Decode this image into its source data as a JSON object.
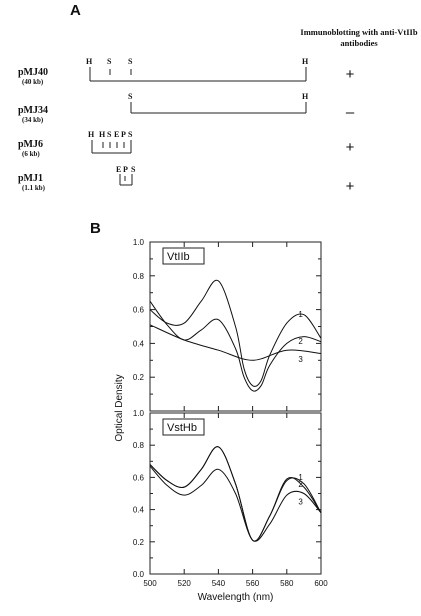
{
  "panel_a": {
    "label": "A",
    "header": [
      "Immunoblotting with anti-VtIIb",
      "antibodies"
    ],
    "clones": [
      {
        "name": "pMJ40",
        "size": "(40 kb)",
        "result": "+",
        "sites": [
          "H",
          "S",
          "S",
          "H"
        ]
      },
      {
        "name": "pMJ34",
        "size": "(34 kb)",
        "result": "–",
        "sites": [
          "S",
          "H"
        ]
      },
      {
        "name": "pMJ6",
        "size": "(6 kb)",
        "result": "+",
        "sites": [
          "H",
          "H",
          "S",
          "E",
          "P",
          "S"
        ]
      },
      {
        "name": "pMJ1",
        "size": "(1.1 kb)",
        "result": "+",
        "sites": [
          "E",
          "P",
          "S"
        ]
      }
    ]
  },
  "panel_b": {
    "label": "B",
    "chart_data": {
      "type": "line",
      "xlabel": "Wavelength  (nm)",
      "ylabel": "Optical Density",
      "xlim": [
        500,
        600
      ],
      "ylim": [
        0.0,
        1.0
      ],
      "x_ticks": [
        "500",
        "520",
        "540",
        "560",
        "580",
        "600"
      ],
      "y_ticks": [
        "0.0",
        "0.2",
        "0.4",
        "0.6",
        "0.8",
        "1.0"
      ],
      "y_ticks_upper": [
        "0.2",
        "0.4",
        "0.6",
        "0.8",
        "1.0"
      ],
      "subplots": [
        {
          "title": "VtIIb",
          "series": [
            {
              "name": "1",
              "x": [
                500,
                510,
                520,
                530,
                540,
                550,
                555,
                560,
                565,
                570,
                580,
                590,
                600
              ],
              "y": [
                0.6,
                0.52,
                0.52,
                0.65,
                0.77,
                0.5,
                0.25,
                0.15,
                0.18,
                0.33,
                0.52,
                0.57,
                0.43
              ]
            },
            {
              "name": "2",
              "x": [
                500,
                510,
                520,
                530,
                540,
                550,
                555,
                560,
                565,
                570,
                580,
                590,
                600
              ],
              "y": [
                0.65,
                0.51,
                0.42,
                0.48,
                0.54,
                0.37,
                0.2,
                0.12,
                0.15,
                0.27,
                0.4,
                0.44,
                0.41
              ]
            },
            {
              "name": "3",
              "x": [
                500,
                520,
                540,
                560,
                580,
                600
              ],
              "y": [
                0.51,
                0.42,
                0.36,
                0.3,
                0.36,
                0.34
              ]
            }
          ]
        },
        {
          "title": "VstHb",
          "series": [
            {
              "name": "1",
              "x": [
                500,
                510,
                520,
                530,
                540,
                550,
                560,
                570,
                580,
                590,
                600
              ],
              "y": [
                0.68,
                0.58,
                0.54,
                0.65,
                0.79,
                0.56,
                0.21,
                0.36,
                0.58,
                0.56,
                0.38
              ]
            },
            {
              "name": "2",
              "x": [
                500,
                510,
                520,
                530,
                540,
                550,
                560,
                570,
                580,
                590,
                600
              ],
              "y": [
                0.68,
                0.58,
                0.54,
                0.65,
                0.79,
                0.56,
                0.21,
                0.36,
                0.59,
                0.54,
                0.38
              ]
            },
            {
              "name": "3",
              "x": [
                500,
                510,
                520,
                530,
                540,
                550,
                560,
                570,
                580,
                590,
                600
              ],
              "y": [
                0.67,
                0.55,
                0.49,
                0.55,
                0.65,
                0.5,
                0.21,
                0.31,
                0.49,
                0.5,
                0.38
              ]
            }
          ]
        }
      ]
    }
  }
}
